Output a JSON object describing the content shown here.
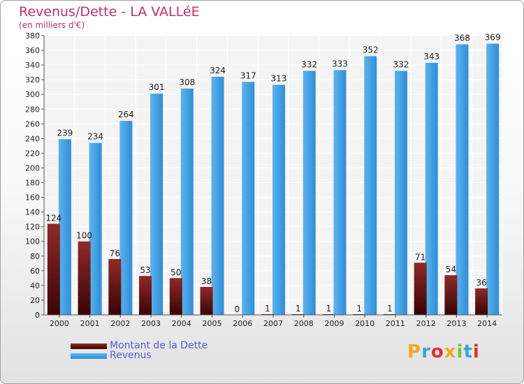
{
  "title": "Revenus/Dette - LA VALLéE",
  "subtitle": "(en milliers d'€)",
  "logo": {
    "letters": [
      "P",
      "r",
      "o",
      "x",
      "i",
      "t",
      "i"
    ],
    "colors": [
      "#f5a623",
      "#3aa5dd",
      "#e03030",
      "#f5a623",
      "#7cc242",
      "#3aa5dd",
      "#e03030"
    ]
  },
  "legend": [
    {
      "label": "Montant de la Dette",
      "color": "#6e1010"
    },
    {
      "label": "Revenus",
      "color": "#4aa3e6"
    }
  ],
  "chart_data": {
    "type": "bar",
    "title": "Revenus/Dette - LA VALLéE",
    "subtitle": "(en milliers d'€)",
    "categories": [
      "2000",
      "2001",
      "2002",
      "2003",
      "2004",
      "2005",
      "2006",
      "2007",
      "2008",
      "2009",
      "2010",
      "2011",
      "2012",
      "2013",
      "2014"
    ],
    "series": [
      {
        "name": "Montant de la Dette",
        "color": "#6e1010",
        "values": [
          124,
          100,
          76,
          53,
          50,
          38,
          0,
          1,
          1,
          1,
          1,
          1,
          71,
          54,
          36
        ]
      },
      {
        "name": "Revenus",
        "color": "#4aa3e6",
        "values": [
          239,
          234,
          264,
          301,
          308,
          324,
          317,
          313,
          332,
          333,
          352,
          332,
          343,
          368,
          369
        ]
      }
    ],
    "ylim": [
      0,
      380
    ],
    "ytick_step": 20,
    "grid": true,
    "legend_position": "bottom-left"
  }
}
